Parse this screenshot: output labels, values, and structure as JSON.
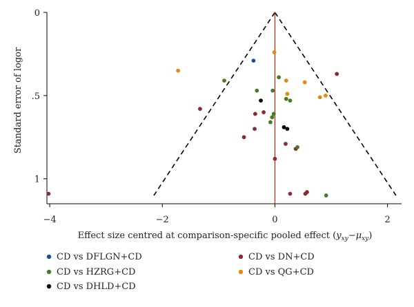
{
  "chart_data": {
    "type": "scatter",
    "title": "",
    "xlabel_main": "Effect size centred at comparison-specific pooled effect (",
    "xlabel_math": "y",
    "xlabel_sub1": "xy",
    "xlabel_minus": "−",
    "xlabel_mu": "μ",
    "xlabel_sub2": "xy",
    "xlabel_close": ")",
    "ylabel": "Standard error of logor",
    "xlim": [
      -4.05,
      2.25
    ],
    "ylim": [
      0,
      1.15
    ],
    "y_inverted": true,
    "x_ticks": [
      -4,
      -2,
      0,
      2
    ],
    "x_tick_labels": [
      "−4",
      "−2",
      "0",
      "2"
    ],
    "y_ticks": [
      0,
      0.5,
      1
    ],
    "y_tick_labels": [
      "0",
      ".5",
      "1"
    ],
    "funnel": {
      "apex": [
        0,
        0
      ],
      "left_base": [
        -2.15,
        1.1
      ],
      "right_base": [
        2.15,
        1.1
      ]
    },
    "reference_line_x": 0,
    "series": [
      {
        "name": "CD vs DFLGN+CD",
        "color": "#1f4e8c",
        "points": [
          [
            -0.38,
            0.29
          ]
        ]
      },
      {
        "name": "CD vs DN+CD",
        "color": "#8b2a30",
        "points": [
          [
            -4.02,
            1.09
          ],
          [
            -1.33,
            0.58
          ],
          [
            -0.55,
            0.75
          ],
          [
            -0.36,
            0.7
          ],
          [
            -0.35,
            0.61
          ],
          [
            -0.2,
            0.6
          ],
          [
            0.0,
            0.88
          ],
          [
            0.19,
            0.79
          ],
          [
            0.37,
            0.82
          ],
          [
            0.27,
            1.09
          ],
          [
            0.54,
            1.09
          ],
          [
            0.57,
            1.08
          ],
          [
            1.1,
            0.37
          ]
        ]
      },
      {
        "name": "CD vs HZRG+CD",
        "color": "#4a7a22",
        "points": [
          [
            -0.9,
            0.41
          ],
          [
            -0.32,
            0.47
          ],
          [
            -0.04,
            0.47
          ],
          [
            0.07,
            0.39
          ],
          [
            0.2,
            0.52
          ],
          [
            0.27,
            0.53
          ],
          [
            -0.02,
            0.61
          ],
          [
            -0.05,
            0.63
          ],
          [
            -0.08,
            0.66
          ],
          [
            0.4,
            0.81
          ],
          [
            0.91,
            1.1
          ]
        ]
      },
      {
        "name": "CD vs QG+CD",
        "color": "#e08a12",
        "points": [
          [
            -1.72,
            0.35
          ],
          [
            -0.01,
            0.24
          ],
          [
            0.2,
            0.41
          ],
          [
            0.22,
            0.49
          ],
          [
            0.53,
            0.42
          ],
          [
            0.8,
            0.51
          ],
          [
            0.9,
            0.5
          ]
        ]
      },
      {
        "name": "CD vs DHLD+CD",
        "color": "#000000",
        "points": [
          [
            -0.25,
            0.53
          ],
          [
            0.16,
            0.69
          ],
          [
            0.22,
            0.7
          ]
        ]
      }
    ],
    "legend": {
      "placement": "bottom",
      "entries_left": [
        "CD vs DFLGN+CD",
        "CD vs HZRG+CD",
        "CD vs DHLD+CD"
      ],
      "entries_right": [
        "CD vs DN+CD",
        "CD vs QG+CD"
      ]
    }
  }
}
